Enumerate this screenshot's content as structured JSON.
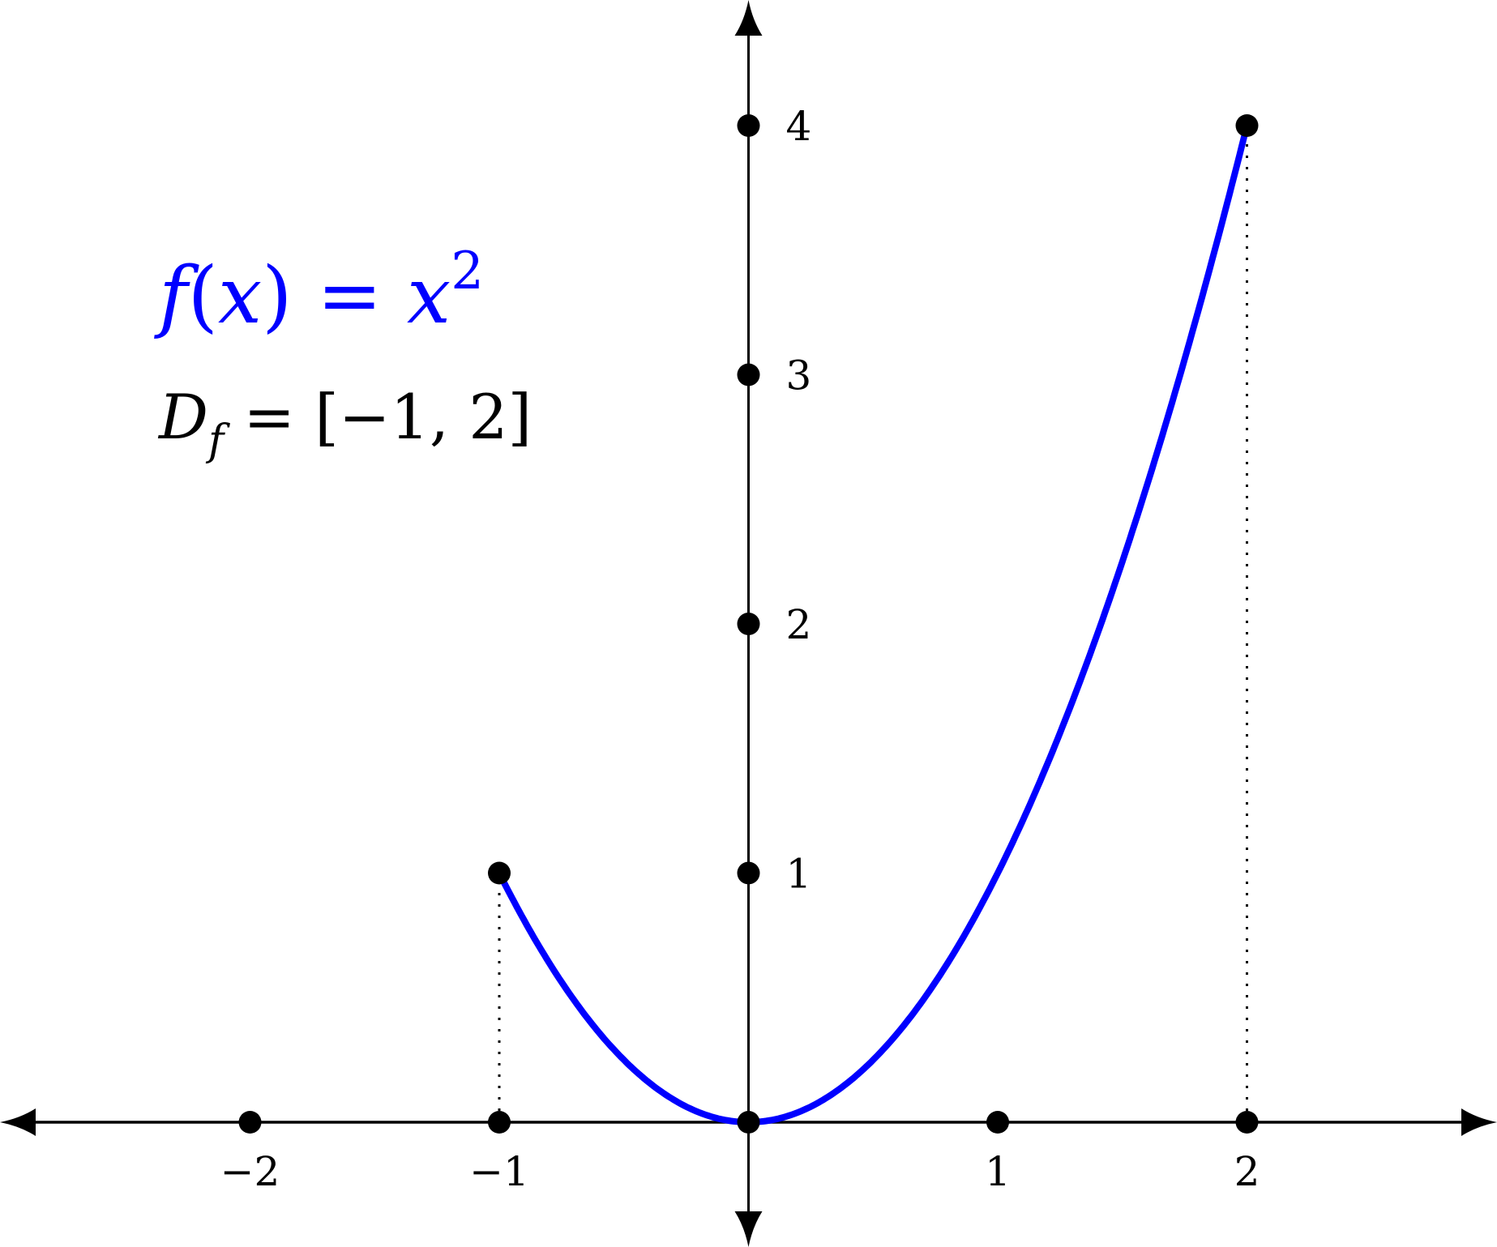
{
  "chart_data": {
    "type": "line",
    "function": "x^2",
    "domain": [
      -1,
      2
    ],
    "x": [
      -1,
      -0.75,
      -0.5,
      -0.25,
      0,
      0.25,
      0.5,
      0.75,
      1,
      1.25,
      1.5,
      1.75,
      2
    ],
    "y": [
      1,
      0.5625,
      0.25,
      0.0625,
      0,
      0.0625,
      0.25,
      0.5625,
      1,
      1.5625,
      2.25,
      3.0625,
      4
    ],
    "xlim": [
      -3,
      3
    ],
    "ylim": [
      -0.5,
      4.5
    ],
    "x_ticks": [
      -2,
      -1,
      1,
      2
    ],
    "x_tick_labels": [
      "−2",
      "−1",
      "1",
      "2"
    ],
    "y_ticks": [
      1,
      2,
      3,
      4
    ],
    "y_tick_labels": [
      "1",
      "2",
      "3",
      "4"
    ],
    "endpoints": [
      [
        -1,
        1
      ],
      [
        2,
        4
      ]
    ],
    "grid": false,
    "annotations": {
      "function_label": {
        "fx": "f",
        "paren_open": "(",
        "var": "x",
        "paren_close": ")",
        "eq": " = ",
        "rhs": "x",
        "exp": "2"
      },
      "domain_label": {
        "D": "D",
        "sub": "f",
        "eq": " = ",
        "interval": "[−1, 2]"
      }
    },
    "colors": {
      "curve": "#0000ff",
      "axes": "#000000",
      "function_label": "#0000ff"
    }
  }
}
